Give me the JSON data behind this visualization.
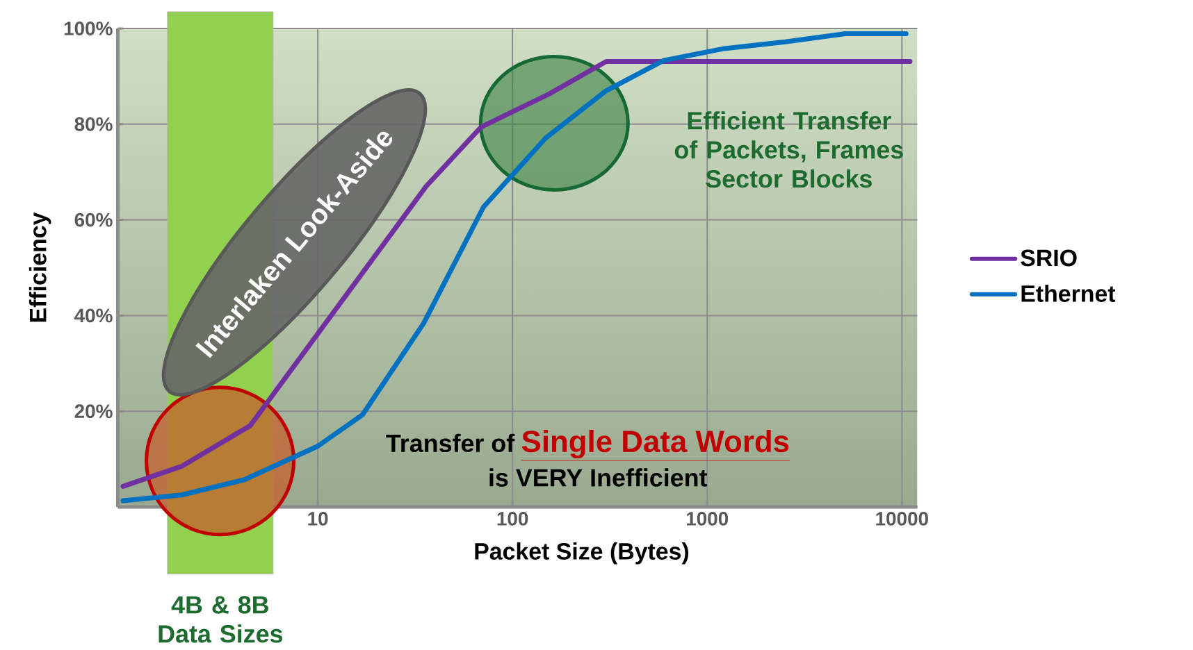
{
  "chart_data": {
    "type": "line",
    "xlabel": "Packet Size (Bytes)",
    "ylabel": "Efficiency",
    "log": "x",
    "xlim": [
      0.94,
      12000
    ],
    "xticks": [
      10,
      100,
      1000,
      10000
    ],
    "ylim": [
      0,
      100
    ],
    "yticks": [
      {
        "value": 0,
        "label": null
      },
      {
        "value": 20,
        "label": "20%"
      },
      {
        "value": 40,
        "label": "40%"
      },
      {
        "value": 60,
        "label": "60%"
      },
      {
        "value": 80,
        "label": "80%"
      },
      {
        "value": 100,
        "label": "100%"
      }
    ],
    "grid": true,
    "legend": "right",
    "line_style": "solid",
    "series": [
      {
        "name": "SRIO",
        "color": "#7030a0",
        "x": [
          1,
          2,
          4.5,
          36,
          69,
          154,
          303,
          11000
        ],
        "values": [
          4.3,
          8.5,
          17,
          67,
          79.4,
          86.3,
          93.1,
          93.1
        ]
      },
      {
        "name": "Ethernet",
        "color": "#0070c0",
        "x": [
          1,
          2,
          4.2,
          10,
          17,
          35,
          71,
          148,
          303,
          597,
          1225,
          2515,
          5130,
          10500
        ],
        "values": [
          1.3,
          2.5,
          5.7,
          12.7,
          19.3,
          38.4,
          62.7,
          77.1,
          87,
          93.3,
          95.8,
          97.2,
          98.9,
          98.9
        ]
      }
    ],
    "bands": [
      {
        "axis": "x",
        "from": 1.69,
        "to": 5.9,
        "label": "4B & 8B Data Sizes",
        "color": "#92d050"
      }
    ],
    "annotations": [
      "Interlaken Look-Aside",
      "Efficient Transfer of Packets, Frames Sector Blocks",
      "Transfer of",
      "Single Data Words",
      "is VERY Inefficient"
    ]
  }
}
